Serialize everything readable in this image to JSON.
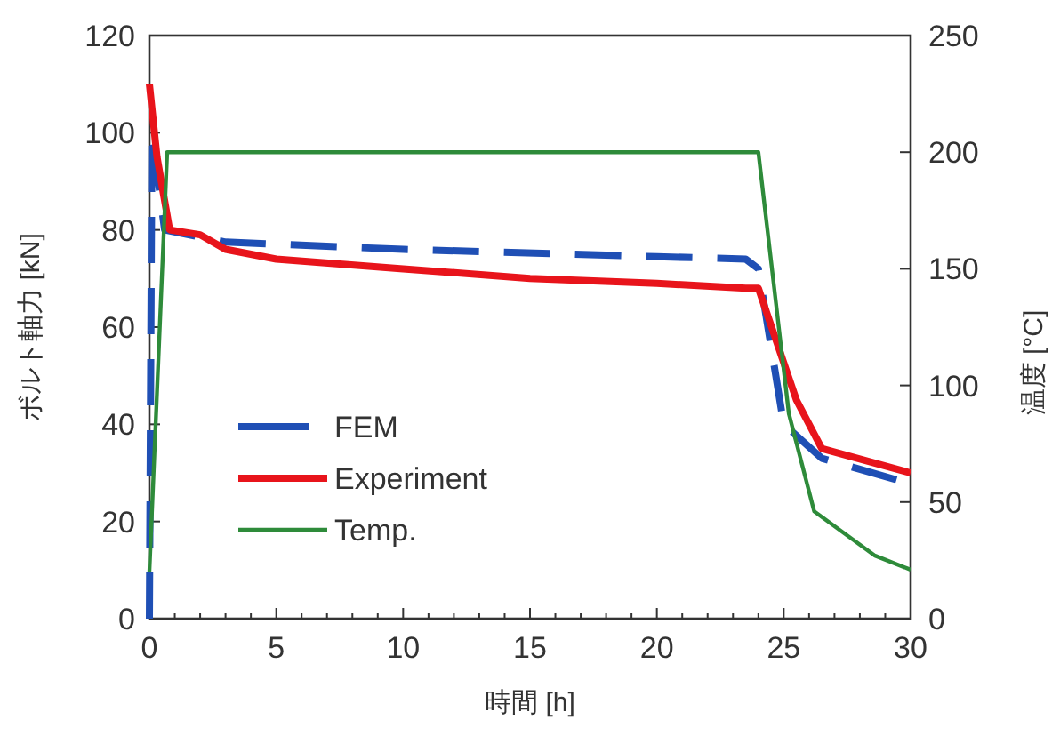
{
  "chart_data": {
    "type": "line",
    "xlabel": "時間 [h]",
    "ylabel": "ボルト軸力 [kN]",
    "y2label": "温度 [°C]",
    "xlim": [
      0,
      30
    ],
    "ylim": [
      0,
      120
    ],
    "y2lim": [
      0,
      250
    ],
    "xticks": [
      0,
      5,
      10,
      15,
      20,
      25,
      30
    ],
    "yticks": [
      0,
      20,
      40,
      60,
      80,
      100,
      120
    ],
    "y2ticks": [
      0,
      50,
      100,
      150,
      200,
      250
    ],
    "legend": "bottom left",
    "series": [
      {
        "name": "FEM",
        "color": "#1f4fb5",
        "line_style": "dashed",
        "x": [
          0,
          0.1,
          0.6,
          3,
          10,
          20,
          23.5,
          24,
          25,
          26.5,
          29.5
        ],
        "values": [
          0,
          100,
          80,
          77.5,
          76,
          74.5,
          74,
          72,
          40,
          33,
          28.5
        ]
      },
      {
        "name": "Experiment",
        "color": "#e8141b",
        "line_style": "solid",
        "x": [
          0,
          0.3,
          0.8,
          2,
          3,
          5,
          10,
          15,
          20,
          23.5,
          24,
          25.5,
          26.5,
          30
        ],
        "values": [
          110,
          95,
          80,
          79,
          76,
          74,
          72,
          70,
          69,
          68,
          68,
          45,
          35,
          30
        ]
      },
      {
        "name": "Temp.",
        "color": "#2e8b3a",
        "line_style": "solid",
        "axis": "y2",
        "x": [
          0,
          0.7,
          24,
          25.2,
          26.2,
          28.6,
          30
        ],
        "values": [
          20,
          200,
          200,
          88,
          46,
          27,
          21
        ]
      }
    ]
  }
}
